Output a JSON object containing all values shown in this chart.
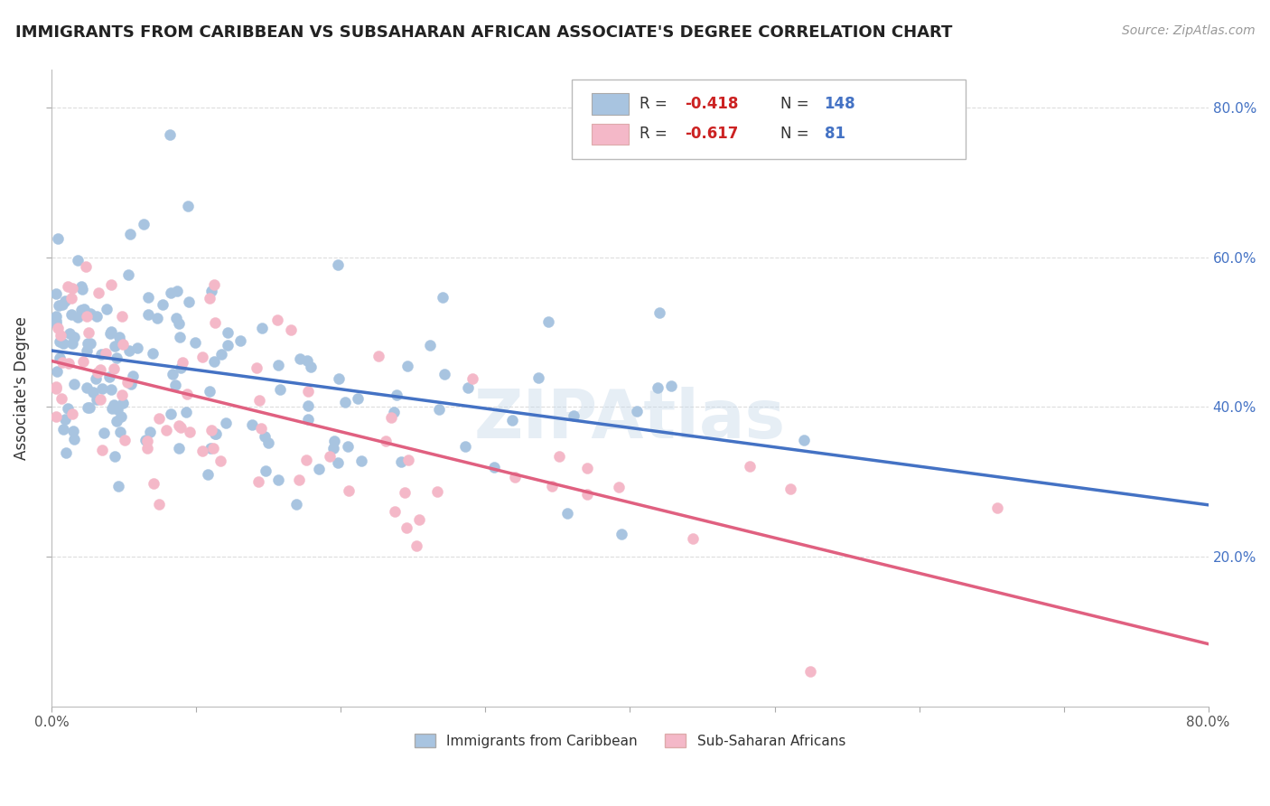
{
  "title": "IMMIGRANTS FROM CARIBBEAN VS SUBSAHARAN AFRICAN ASSOCIATE'S DEGREE CORRELATION CHART",
  "source": "Source: ZipAtlas.com",
  "ylabel": "Associate's Degree",
  "xlim": [
    0.0,
    0.8
  ],
  "ylim": [
    0.0,
    0.85
  ],
  "right_yticks": [
    0.2,
    0.4,
    0.6,
    0.8
  ],
  "right_yticklabels": [
    "20.0%",
    "40.0%",
    "60.0%",
    "80.0%"
  ],
  "caribbean_R": -0.418,
  "caribbean_N": 148,
  "subsaharan_R": -0.617,
  "subsaharan_N": 81,
  "caribbean_color": "#a8c4e0",
  "subsaharan_color": "#f4b8c8",
  "caribbean_line_color": "#4472c4",
  "subsaharan_line_color": "#e06080",
  "background_color": "#ffffff",
  "grid_color": "#dddddd"
}
